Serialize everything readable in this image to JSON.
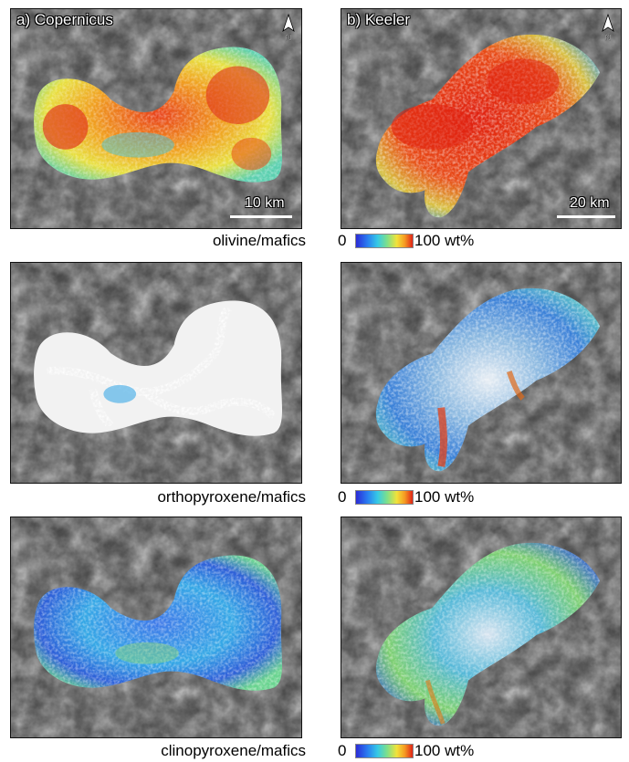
{
  "panels": {
    "copernicus_label": "a) Copernicus",
    "keeler_label": "b) Keeler"
  },
  "scalebars": {
    "copernicus": "10 km",
    "keeler": "20 km"
  },
  "north_label": "N",
  "rows": [
    {
      "mineral": "olivine/mafics"
    },
    {
      "mineral": "orthopyroxene/mafics"
    },
    {
      "mineral": "clinopyroxene/mafics"
    }
  ],
  "colorbar": {
    "min_label": "0",
    "max_label": "100 wt%"
  }
}
